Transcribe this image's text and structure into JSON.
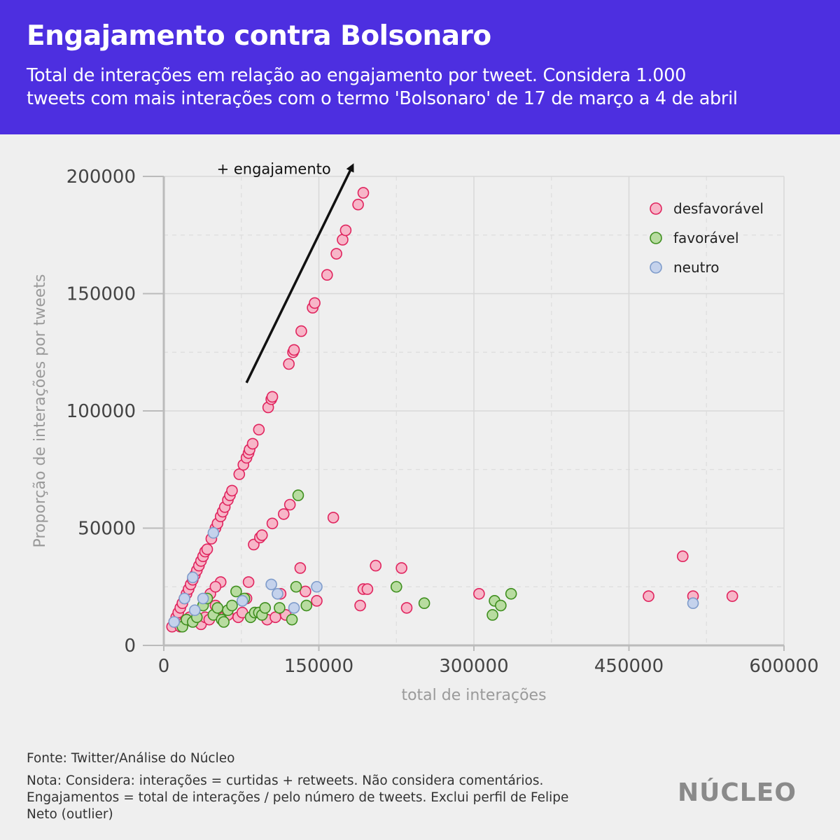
{
  "header": {
    "title": "Engajamento contra Bolsonaro",
    "subtitle_line1": "Total de interações em relação ao engajamento por tweet. Considera 1.000",
    "subtitle_line2": "tweets com mais interações com o termo 'Bolsonaro' de 17 de março a 4 de abril"
  },
  "footer": {
    "source": "Fonte: Twitter/Análise do Núcleo",
    "note_line1": "Nota: Considera: interações = curtidas + retweets. Não considera comentários.",
    "note_line2": "Engajamentos = total de interações / pelo número de tweets. Exclui perfil de Felipe",
    "note_line3": "Neto (outlier)",
    "logo": "NÚCLEO"
  },
  "chart_data": {
    "type": "scatter",
    "xlabel": "total de interações",
    "ylabel": "Proporção de interações por tweets",
    "xlim": [
      0,
      600000
    ],
    "ylim": [
      0,
      200000
    ],
    "xticks": [
      0,
      150000,
      300000,
      450000,
      600000
    ],
    "yticks": [
      0,
      50000,
      100000,
      150000,
      200000
    ],
    "grid": true,
    "legend_position": "top-right",
    "annotation": {
      "text": "+ engajamento",
      "from": [
        80000,
        112000
      ],
      "to": [
        182000,
        204000
      ]
    },
    "colors": {
      "desfavorável": {
        "fill": "#f7b6c8",
        "stroke": "#e0245e"
      },
      "favorável": {
        "fill": "#b8dca0",
        "stroke": "#3f8f1f"
      },
      "neutro": {
        "fill": "#c4d2ec",
        "stroke": "#7f9ccb"
      }
    },
    "series": [
      {
        "name": "desfavorável",
        "points": [
          [
            8000,
            8000
          ],
          [
            10000,
            10000
          ],
          [
            12000,
            12000
          ],
          [
            14000,
            14000
          ],
          [
            16000,
            16000
          ],
          [
            18000,
            18000
          ],
          [
            20000,
            20000
          ],
          [
            22000,
            22000
          ],
          [
            24000,
            24000
          ],
          [
            26000,
            26000
          ],
          [
            28000,
            28000
          ],
          [
            30000,
            30000
          ],
          [
            32000,
            32000
          ],
          [
            34000,
            34000
          ],
          [
            36000,
            36000
          ],
          [
            38000,
            38000
          ],
          [
            40000,
            40000
          ],
          [
            42000,
            41000
          ],
          [
            46000,
            45500
          ],
          [
            50000,
            50000
          ],
          [
            52000,
            52000
          ],
          [
            55000,
            55000
          ],
          [
            57000,
            57000
          ],
          [
            59000,
            59000
          ],
          [
            62000,
            62000
          ],
          [
            64000,
            64000
          ],
          [
            66000,
            66000
          ],
          [
            73000,
            73000
          ],
          [
            77000,
            77000
          ],
          [
            80000,
            80000
          ],
          [
            82000,
            82000
          ],
          [
            83000,
            83500
          ],
          [
            86000,
            86000
          ],
          [
            92000,
            92000
          ],
          [
            101000,
            101500
          ],
          [
            104000,
            105000
          ],
          [
            105000,
            106000
          ],
          [
            121000,
            120000
          ],
          [
            125000,
            125000
          ],
          [
            126000,
            126000
          ],
          [
            133000,
            134000
          ],
          [
            144000,
            144000
          ],
          [
            146000,
            146000
          ],
          [
            158000,
            158000
          ],
          [
            167000,
            167000
          ],
          [
            173000,
            173000
          ],
          [
            176000,
            177000
          ],
          [
            188000,
            188000
          ],
          [
            193000,
            193000
          ],
          [
            16000,
            8000
          ],
          [
            20000,
            10000
          ],
          [
            25000,
            12000
          ],
          [
            36000,
            9000
          ],
          [
            40000,
            12000
          ],
          [
            44000,
            11000
          ],
          [
            50000,
            17000
          ],
          [
            55000,
            14000
          ],
          [
            58000,
            12000
          ],
          [
            62000,
            13000
          ],
          [
            72000,
            12000
          ],
          [
            76000,
            14000
          ],
          [
            80000,
            20000
          ],
          [
            82000,
            27000
          ],
          [
            55000,
            27000
          ],
          [
            45000,
            22000
          ],
          [
            50000,
            25000
          ],
          [
            87000,
            43000
          ],
          [
            93000,
            46000
          ],
          [
            95000,
            47000
          ],
          [
            100000,
            11000
          ],
          [
            105000,
            52000
          ],
          [
            108000,
            12000
          ],
          [
            113000,
            22000
          ],
          [
            116000,
            56000
          ],
          [
            118000,
            13000
          ],
          [
            122000,
            60000
          ],
          [
            132000,
            33000
          ],
          [
            137000,
            23000
          ],
          [
            148000,
            19000
          ],
          [
            164000,
            54500
          ],
          [
            190000,
            17000
          ],
          [
            193000,
            24000
          ],
          [
            197000,
            24000
          ],
          [
            205000,
            34000
          ],
          [
            230000,
            33000
          ],
          [
            235000,
            16000
          ],
          [
            305000,
            22000
          ],
          [
            469000,
            21000
          ],
          [
            502000,
            38000
          ],
          [
            512000,
            21000
          ],
          [
            550000,
            21000
          ]
        ]
      },
      {
        "name": "favorável",
        "points": [
          [
            18000,
            8000
          ],
          [
            22000,
            11000
          ],
          [
            28000,
            10000
          ],
          [
            32000,
            12000
          ],
          [
            38000,
            17000
          ],
          [
            42000,
            20000
          ],
          [
            48000,
            13000
          ],
          [
            52000,
            16000
          ],
          [
            56000,
            11000
          ],
          [
            58000,
            10000
          ],
          [
            62000,
            15000
          ],
          [
            66000,
            17000
          ],
          [
            70000,
            23000
          ],
          [
            78000,
            20000
          ],
          [
            84000,
            12000
          ],
          [
            88000,
            14000
          ],
          [
            92000,
            14000
          ],
          [
            95000,
            13000
          ],
          [
            98000,
            16000
          ],
          [
            112000,
            16000
          ],
          [
            124000,
            11000
          ],
          [
            128000,
            25000
          ],
          [
            130000,
            64000
          ],
          [
            138000,
            17000
          ],
          [
            225000,
            25000
          ],
          [
            252000,
            18000
          ],
          [
            318000,
            13000
          ],
          [
            320000,
            19000
          ],
          [
            326000,
            17000
          ],
          [
            336000,
            22000
          ]
        ]
      },
      {
        "name": "neutro",
        "points": [
          [
            10000,
            10000
          ],
          [
            20000,
            20000
          ],
          [
            28000,
            29000
          ],
          [
            48000,
            48000
          ],
          [
            30000,
            15000
          ],
          [
            38000,
            20000
          ],
          [
            76000,
            19000
          ],
          [
            104000,
            26000
          ],
          [
            110000,
            22000
          ],
          [
            126000,
            16000
          ],
          [
            148000,
            25000
          ],
          [
            512000,
            18000
          ]
        ]
      }
    ]
  }
}
